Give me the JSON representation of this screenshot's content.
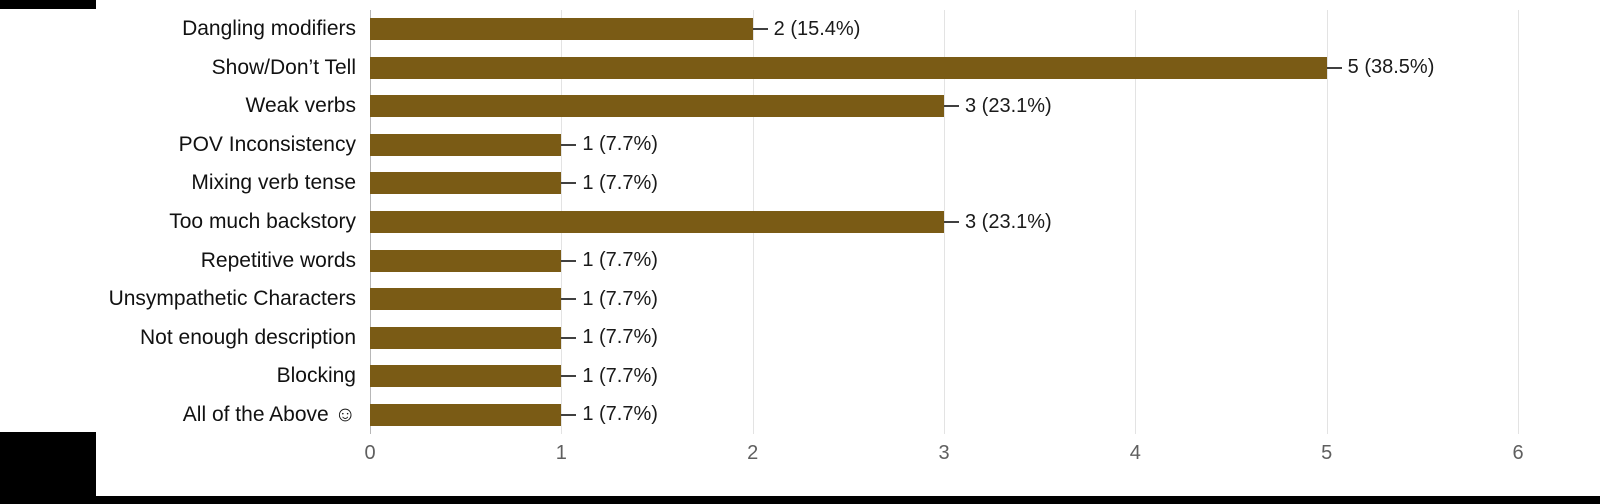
{
  "chart_data": {
    "type": "bar",
    "orientation": "horizontal",
    "title": "",
    "categories": [
      "Dangling modifiers",
      "Show/Don’t Tell",
      "Weak verbs",
      "POV Inconsistency",
      "Mixing verb tense",
      "Too much backstory",
      "Repetitive words",
      "Unsympathetic Characters",
      "Not enough description",
      "Blocking",
      "All of the Above ☺"
    ],
    "values": [
      2,
      5,
      3,
      1,
      1,
      3,
      1,
      1,
      1,
      1,
      1
    ],
    "data_labels": [
      "2 (15.4%)",
      "5 (38.5%)",
      "3 (23.1%)",
      "1 (7.7%)",
      "1 (7.7%)",
      "3 (23.1%)",
      "1 (7.7%)",
      "1 (7.7%)",
      "1 (7.7%)",
      "1 (7.7%)",
      "1 (7.7%)"
    ],
    "x_ticks": [
      0,
      1,
      2,
      3,
      4,
      5,
      6
    ],
    "xlim": [
      0,
      6
    ],
    "xlabel": "",
    "ylabel": "",
    "grid": true,
    "legend": "none",
    "bar_color": "#7a5b15"
  }
}
